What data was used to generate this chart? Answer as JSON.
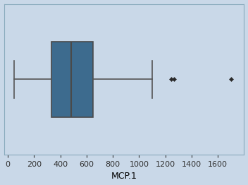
{
  "title": "",
  "xlabel": "MCP.1",
  "ylabel": "",
  "background_color": "#c9d8e8",
  "box_facecolor": "#3d6b8e",
  "box_edgecolor": "#4a4a4a",
  "whisker_color": "#555555",
  "median_color": "#4a4a4a",
  "flier_color": "#2a2a2a",
  "q1": 330,
  "median": 480,
  "q3": 650,
  "whisker_low": 50,
  "whisker_high": 1100,
  "outliers": [
    1245,
    1265,
    1700
  ],
  "xlim": [
    -30,
    1800
  ],
  "xticks": [
    0,
    200,
    400,
    600,
    800,
    1000,
    1200,
    1400,
    1600
  ],
  "figsize": [
    3.52,
    2.62
  ],
  "dpi": 100
}
